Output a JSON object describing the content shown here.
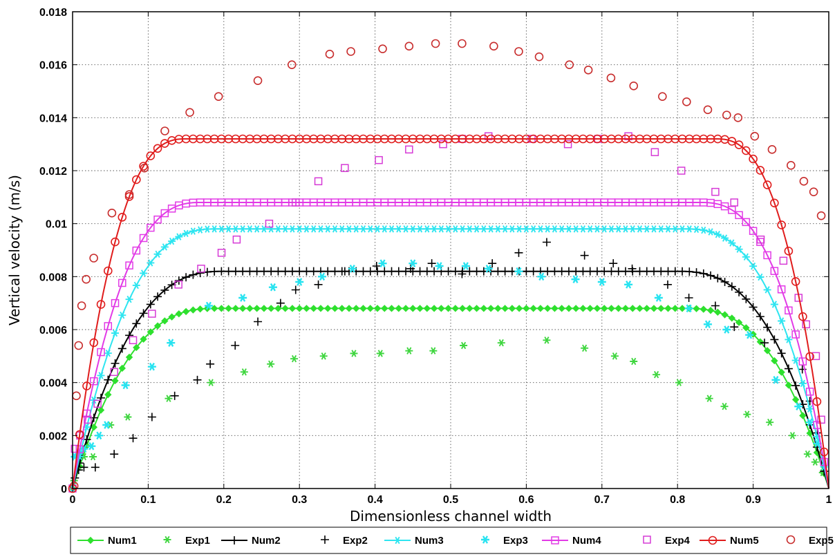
{
  "chart_data": {
    "type": "line",
    "xlabel": "Dimensionless channel width",
    "ylabel": "Vertical velocity (m/s)",
    "xlim": [
      0,
      1
    ],
    "ylim": [
      0,
      0.018
    ],
    "x_ticks": [
      "0",
      "0.1",
      "0.2",
      "0.3",
      "0.4",
      "0.5",
      "0.6",
      "0.7",
      "0.8",
      "0.9",
      "1"
    ],
    "y_ticks": [
      "0",
      "0.002",
      "0.004",
      "0.006",
      "0.008",
      "0.01",
      "0.012",
      "0.014",
      "0.016",
      "0.018"
    ],
    "grid": true,
    "legend_position": "bottom",
    "series": [
      {
        "name": "Num1",
        "kind": "numerical",
        "color": "#2ee02e",
        "marker": "diamond",
        "plateau": 0.0068,
        "edge_width": 0.19
      },
      {
        "name": "Exp1",
        "kind": "experimental",
        "color": "#3fd63f",
        "marker": "star",
        "x": [
          0.002,
          0.008,
          0.015,
          0.027,
          0.05,
          0.073,
          0.127,
          0.183,
          0.227,
          0.262,
          0.293,
          0.332,
          0.372,
          0.407,
          0.445,
          0.477,
          0.517,
          0.567,
          0.627,
          0.677,
          0.717,
          0.742,
          0.772,
          0.802,
          0.842,
          0.862,
          0.892,
          0.922,
          0.952,
          0.972,
          0.982,
          0.992
        ],
        "y": [
          0.0003,
          0.0008,
          0.0012,
          0.0012,
          0.0024,
          0.0027,
          0.0034,
          0.004,
          0.0044,
          0.0047,
          0.0049,
          0.005,
          0.0051,
          0.0051,
          0.0052,
          0.0052,
          0.0054,
          0.0055,
          0.0056,
          0.0053,
          0.005,
          0.0048,
          0.0043,
          0.004,
          0.0034,
          0.0031,
          0.0028,
          0.0025,
          0.002,
          0.0013,
          0.001,
          0.0006
        ]
      },
      {
        "name": "Num2",
        "kind": "numerical",
        "color": "#000000",
        "marker": "plus",
        "plateau": 0.0082,
        "edge_width": 0.2
      },
      {
        "name": "Exp2",
        "kind": "experimental",
        "color": "#000000",
        "marker": "plus",
        "x": [
          0.003,
          0.008,
          0.015,
          0.03,
          0.055,
          0.08,
          0.105,
          0.135,
          0.165,
          0.182,
          0.215,
          0.245,
          0.275,
          0.295,
          0.325,
          0.36,
          0.402,
          0.447,
          0.475,
          0.515,
          0.555,
          0.59,
          0.627,
          0.677,
          0.715,
          0.74,
          0.787,
          0.815,
          0.85,
          0.875,
          0.915,
          0.965,
          0.975,
          0.985
        ],
        "y": [
          0.0004,
          0.0007,
          0.0008,
          0.0008,
          0.0013,
          0.0019,
          0.0027,
          0.0035,
          0.0041,
          0.0047,
          0.0054,
          0.0063,
          0.007,
          0.0075,
          0.0077,
          0.0082,
          0.0084,
          0.0083,
          0.0085,
          0.0081,
          0.0085,
          0.0089,
          0.0093,
          0.0088,
          0.0085,
          0.0083,
          0.0077,
          0.0072,
          0.0069,
          0.0061,
          0.0055,
          0.0045,
          0.0033,
          0.0021
        ]
      },
      {
        "name": "Num3",
        "kind": "numerical",
        "color": "#2ee5f0",
        "marker": "star",
        "plateau": 0.0098,
        "edge_width": 0.19
      },
      {
        "name": "Exp3",
        "kind": "experimental",
        "color": "#28e3f0",
        "marker": "asterisk",
        "x": [
          0.003,
          0.008,
          0.015,
          0.025,
          0.035,
          0.045,
          0.07,
          0.105,
          0.13,
          0.18,
          0.225,
          0.265,
          0.3,
          0.33,
          0.37,
          0.41,
          0.45,
          0.485,
          0.52,
          0.55,
          0.59,
          0.62,
          0.665,
          0.7,
          0.735,
          0.775,
          0.815,
          0.84,
          0.865,
          0.895,
          0.93,
          0.96,
          0.975,
          0.985
        ],
        "y": [
          0.0012,
          0.0013,
          0.0015,
          0.0016,
          0.002,
          0.0024,
          0.0039,
          0.0046,
          0.0055,
          0.0069,
          0.0072,
          0.0076,
          0.0078,
          0.008,
          0.0083,
          0.0085,
          0.0085,
          0.0084,
          0.0084,
          0.0083,
          0.0082,
          0.008,
          0.0079,
          0.0078,
          0.0077,
          0.0072,
          0.0068,
          0.0062,
          0.006,
          0.0058,
          0.0041,
          0.0031,
          0.0025,
          0.0017
        ]
      },
      {
        "name": "Num4",
        "kind": "numerical",
        "color": "#e23ae6",
        "marker": "square",
        "plateau": 0.0108,
        "edge_width": 0.17
      },
      {
        "name": "Exp4",
        "kind": "experimental",
        "color": "#d63ad6",
        "marker": "square",
        "x": [
          0.003,
          0.01,
          0.02,
          0.033,
          0.055,
          0.08,
          0.105,
          0.14,
          0.17,
          0.197,
          0.217,
          0.26,
          0.295,
          0.325,
          0.36,
          0.405,
          0.445,
          0.49,
          0.515,
          0.55,
          0.607,
          0.655,
          0.695,
          0.735,
          0.77,
          0.805,
          0.85,
          0.875,
          0.91,
          0.94,
          0.96,
          0.97,
          0.983,
          0.99
        ],
        "y": [
          0.0015,
          0.002,
          0.0026,
          0.0032,
          0.0044,
          0.0056,
          0.0066,
          0.0077,
          0.0083,
          0.0089,
          0.0094,
          0.01,
          0.0108,
          0.0116,
          0.0121,
          0.0124,
          0.0128,
          0.013,
          0.0132,
          0.0133,
          0.0132,
          0.013,
          0.0132,
          0.0133,
          0.0127,
          0.012,
          0.0112,
          0.0108,
          0.0094,
          0.0086,
          0.0072,
          0.0062,
          0.005,
          0.0026
        ]
      },
      {
        "name": "Num5",
        "kind": "numerical",
        "color": "#e01c1c",
        "marker": "circle",
        "plateau": 0.0132,
        "edge_width": 0.15
      },
      {
        "name": "Exp5",
        "kind": "experimental",
        "color": "#c82d2d",
        "marker": "circle",
        "x": [
          0.002,
          0.005,
          0.008,
          0.012,
          0.018,
          0.028,
          0.052,
          0.075,
          0.095,
          0.122,
          0.155,
          0.193,
          0.245,
          0.29,
          0.34,
          0.368,
          0.41,
          0.445,
          0.48,
          0.515,
          0.557,
          0.59,
          0.617,
          0.657,
          0.682,
          0.712,
          0.742,
          0.78,
          0.812,
          0.84,
          0.865,
          0.88,
          0.902,
          0.925,
          0.95,
          0.967,
          0.98,
          0.99
        ],
        "y": [
          0.0001,
          0.0035,
          0.0054,
          0.0069,
          0.0079,
          0.0087,
          0.0104,
          0.0111,
          0.0121,
          0.0135,
          0.0142,
          0.0148,
          0.0154,
          0.016,
          0.0164,
          0.0165,
          0.0166,
          0.0167,
          0.0168,
          0.0168,
          0.0167,
          0.0165,
          0.0163,
          0.016,
          0.0158,
          0.0155,
          0.0152,
          0.0148,
          0.0146,
          0.0143,
          0.0141,
          0.014,
          0.0133,
          0.0128,
          0.0122,
          0.0116,
          0.0112,
          0.0103
        ]
      }
    ]
  }
}
